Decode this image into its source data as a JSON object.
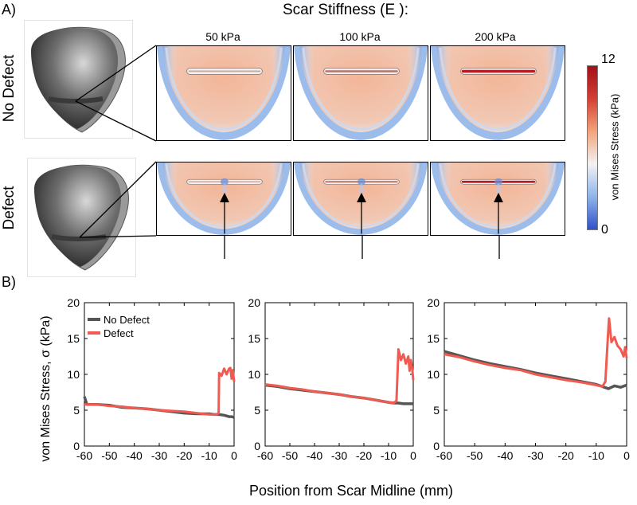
{
  "panel_a_label": "A)",
  "panel_b_label": "B)",
  "header_title": "Scar Stiffness (E ):",
  "column_labels": [
    "50 kPa",
    "100 kPa",
    "200 kPa"
  ],
  "row_labels": [
    "No Defect",
    "Defect"
  ],
  "colorbar": {
    "title": "von Mises Stress (kPa)",
    "max_label": "12",
    "min_label": "0",
    "colors": [
      "#3050c8",
      "#8fb4ea",
      "#f2f2f2",
      "#f2a47a",
      "#d44033",
      "#a3101a"
    ]
  },
  "scar_intensity": [
    0.35,
    0.6,
    1.0
  ],
  "chart_data": [
    {
      "type": "line",
      "title": "",
      "xlabel": "Position from Scar Midline (mm)",
      "ylabel": "von Mises Stress, σ (kPa)",
      "xlim": [
        -60,
        0
      ],
      "ylim": [
        0,
        20
      ],
      "xticks": [
        -60,
        -50,
        -40,
        -30,
        -20,
        -10,
        0
      ],
      "yticks": [
        0,
        5,
        10,
        15,
        20
      ],
      "legend": "top-left",
      "series": [
        {
          "name": "No Defect",
          "color": "#555555",
          "x": [
            -60,
            -59,
            -55,
            -50,
            -45,
            -40,
            -35,
            -30,
            -25,
            -20,
            -15,
            -10,
            -8,
            -6,
            -4,
            -3,
            -2,
            -1,
            0
          ],
          "y": [
            6.9,
            5.8,
            5.8,
            5.7,
            5.4,
            5.3,
            5.2,
            5.0,
            4.8,
            4.6,
            4.5,
            4.5,
            4.4,
            4.4,
            4.3,
            4.2,
            4.1,
            4.1,
            4.0
          ]
        },
        {
          "name": "Defect",
          "color": "#f05a50",
          "x": [
            -60,
            -55,
            -50,
            -45,
            -40,
            -35,
            -30,
            -25,
            -20,
            -15,
            -10,
            -7,
            -6.2,
            -6,
            -5,
            -4,
            -3,
            -2,
            -1.5,
            -1,
            -0.5,
            0
          ],
          "y": [
            5.8,
            5.8,
            5.6,
            5.5,
            5.3,
            5.2,
            5.0,
            4.9,
            4.8,
            4.6,
            4.4,
            4.4,
            4.6,
            10.2,
            9.8,
            10.8,
            10.0,
            10.8,
            10.9,
            9.4,
            10.6,
            9.0
          ]
        }
      ]
    },
    {
      "type": "line",
      "title": "",
      "xlabel": "",
      "ylabel": "",
      "xlim": [
        -60,
        0
      ],
      "ylim": [
        0,
        20
      ],
      "xticks": [
        -60,
        -50,
        -40,
        -30,
        -20,
        -10,
        0
      ],
      "yticks": [
        0,
        5,
        10,
        15,
        20
      ],
      "series": [
        {
          "name": "No Defect",
          "color": "#555555",
          "x": [
            -60,
            -55,
            -50,
            -45,
            -40,
            -35,
            -30,
            -25,
            -20,
            -15,
            -10,
            -8,
            -6,
            -4,
            -2,
            0
          ],
          "y": [
            8.5,
            8.3,
            8.0,
            7.8,
            7.6,
            7.4,
            7.2,
            6.9,
            6.7,
            6.4,
            6.1,
            6.0,
            6.0,
            5.9,
            5.9,
            5.9
          ]
        },
        {
          "name": "Defect",
          "color": "#f05a50",
          "x": [
            -60,
            -55,
            -50,
            -45,
            -40,
            -35,
            -30,
            -25,
            -20,
            -15,
            -10,
            -8,
            -6.8,
            -6,
            -5,
            -4,
            -3,
            -2,
            -1.5,
            -1,
            -0.5,
            0
          ],
          "y": [
            8.6,
            8.4,
            8.1,
            7.9,
            7.6,
            7.4,
            7.2,
            6.9,
            6.7,
            6.4,
            6.1,
            6.0,
            6.3,
            13.5,
            12.0,
            12.8,
            11.5,
            12.5,
            10.5,
            12.0,
            11.0,
            9.2
          ]
        }
      ]
    },
    {
      "type": "line",
      "title": "",
      "xlabel": "",
      "ylabel": "",
      "xlim": [
        -60,
        0
      ],
      "ylim": [
        0,
        20
      ],
      "xticks": [
        -60,
        -50,
        -40,
        -30,
        -20,
        -10,
        0
      ],
      "yticks": [
        0,
        5,
        10,
        15,
        20
      ],
      "series": [
        {
          "name": "No Defect",
          "color": "#555555",
          "x": [
            -60,
            -55,
            -50,
            -45,
            -40,
            -35,
            -30,
            -25,
            -20,
            -15,
            -10,
            -8,
            -6,
            -4,
            -2,
            0
          ],
          "y": [
            13.2,
            12.6,
            12.0,
            11.5,
            11.1,
            10.7,
            10.2,
            9.8,
            9.4,
            9.0,
            8.6,
            8.3,
            8.0,
            8.4,
            8.2,
            8.5
          ]
        },
        {
          "name": "Defect",
          "color": "#f05a50",
          "x": [
            -60,
            -55,
            -50,
            -45,
            -40,
            -35,
            -30,
            -25,
            -20,
            -15,
            -10,
            -8,
            -7,
            -6.2,
            -5.8,
            -5,
            -4,
            -3,
            -2,
            -1,
            -0.5,
            0
          ],
          "y": [
            12.8,
            12.4,
            11.8,
            11.3,
            10.9,
            10.6,
            10.0,
            9.6,
            9.2,
            8.9,
            8.5,
            8.3,
            9.0,
            15.0,
            17.8,
            14.5,
            15.2,
            14.0,
            13.5,
            12.5,
            13.8,
            12.3
          ]
        }
      ]
    }
  ]
}
